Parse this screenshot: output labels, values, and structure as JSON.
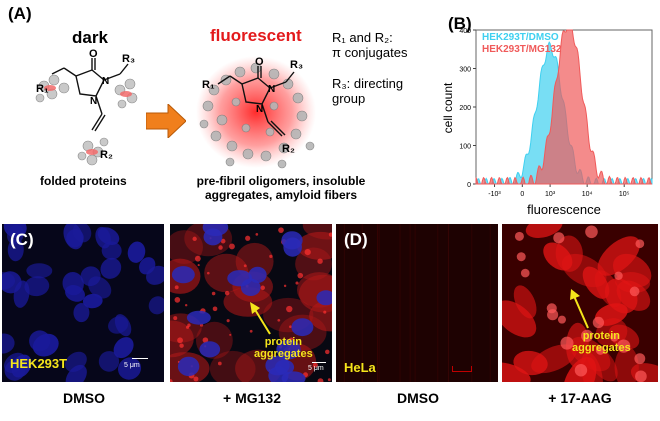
{
  "panelA": {
    "label": "(A)",
    "dark_label": "dark",
    "fluor_label": "fluorescent",
    "left_caption": "folded proteins",
    "right_caption_line1": "pre-fibril oligomers, insoluble",
    "right_caption_line2": "aggregates, amyloid fibers",
    "legend_r12_line1": "R₁ and R₂:",
    "legend_r12_line2": "π conjugates",
    "legend_r3_line1": "R₃: directing",
    "legend_r3_line2": "group",
    "atoms": {
      "O": "O",
      "N": "N",
      "R1": "R₁",
      "R2": "R₂",
      "R3": "R₃"
    },
    "colors": {
      "arrow": "#f07f1c",
      "fluor_text": "#e31a1c",
      "glow": "#ff2a2a"
    }
  },
  "panelB": {
    "label": "(B)",
    "chart_data": {
      "type": "area",
      "xlabel": "fluorescence",
      "ylabel": "cell count",
      "xscale": "log",
      "xticks": [
        "-10³",
        "0",
        "10³",
        "10⁴",
        "10⁵"
      ],
      "yticks": [
        0,
        100,
        200,
        300,
        400
      ],
      "ylim": [
        0,
        400
      ],
      "legend_position": "top-left",
      "series": [
        {
          "name": "HEK293T/DMSO",
          "color": "#3fd0f0",
          "peak_log_x": 3.8,
          "peak_count": 355
        },
        {
          "name": "HEK293T/MG132",
          "color": "#f05a5a",
          "peak_log_x": 4.2,
          "peak_count": 420
        }
      ]
    }
  },
  "panelC": {
    "label": "(C)",
    "cell_line": "HEK293T",
    "scale_bar_left": "5 μm",
    "scale_bar_right": "5 μm",
    "annotation_line1": "protein",
    "annotation_line2": "aggregates",
    "caption_left": "DMSO",
    "caption_right": "+ MG132"
  },
  "panelD": {
    "label": "(D)",
    "cell_line": "HeLa",
    "annotation_line1": "protein",
    "annotation_line2": "aggregates",
    "caption_left": "DMSO",
    "caption_right": "+ 17-AAG"
  },
  "colors": {
    "annotation_yellow": "#f5e51b"
  }
}
